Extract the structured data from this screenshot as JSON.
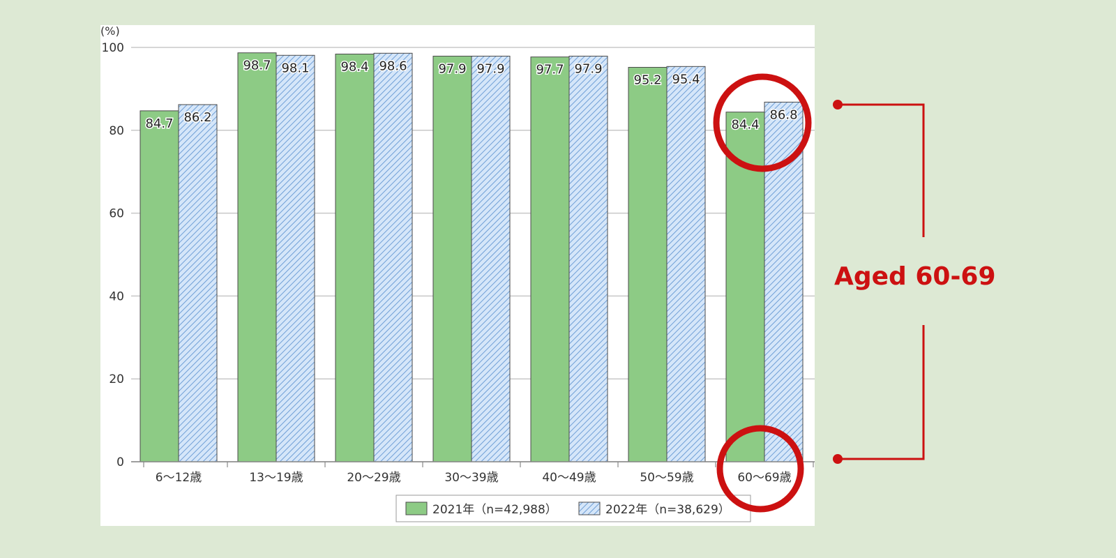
{
  "chart_data": {
    "type": "bar",
    "unit_label": "(%)",
    "categories": [
      "6～12歳",
      "13～19歳",
      "20～29歳",
      "30～39歳",
      "40～49歳",
      "50～59歳",
      "60～69歳"
    ],
    "series": [
      {
        "name": "2021年（n=42,988）",
        "values": [
          84.7,
          98.7,
          98.4,
          97.9,
          97.7,
          95.2,
          84.4
        ],
        "color": "#8dcb85"
      },
      {
        "name": "2022年（n=38,629）",
        "values": [
          86.2,
          98.1,
          98.6,
          97.9,
          97.9,
          95.4,
          86.8
        ],
        "color": "#cfe2f7"
      }
    ],
    "ylim": [
      0,
      100
    ],
    "yticks": [
      0,
      20,
      40,
      60,
      80,
      100
    ],
    "grid": true,
    "legend_position": "bottom-right"
  },
  "annotation": {
    "label": "Aged 60-69",
    "color": "#cc1111",
    "highlight_category": "60～69歳"
  }
}
